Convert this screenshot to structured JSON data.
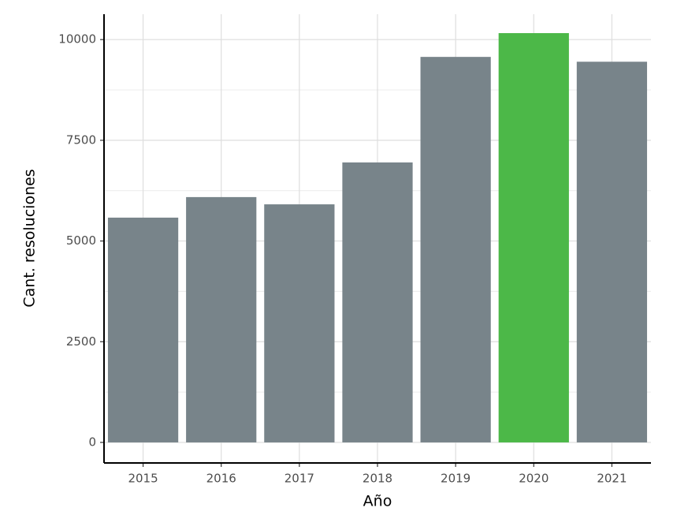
{
  "chart_data": {
    "type": "bar",
    "x_label": "Año",
    "y_label": "Cant. resoluciones",
    "categories": [
      "2015",
      "2016",
      "2017",
      "2018",
      "2019",
      "2020",
      "2021"
    ],
    "values": [
      5580,
      6090,
      5910,
      6950,
      9570,
      10160,
      9450
    ],
    "colors": [
      "#78848a",
      "#78848a",
      "#78848a",
      "#78848a",
      "#78848a",
      "#4cb848",
      "#78848a"
    ],
    "ylim": [
      -510,
      10630
    ],
    "yticks": [
      0,
      2500,
      5000,
      7500,
      10000
    ],
    "grid": true
  }
}
